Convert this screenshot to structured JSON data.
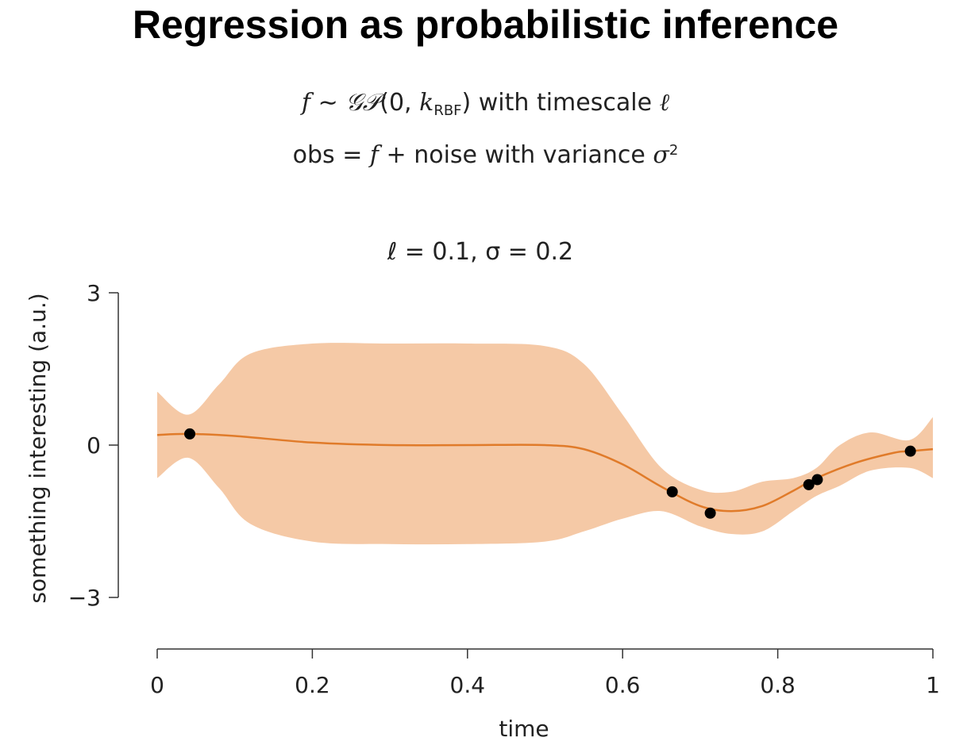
{
  "slide": {
    "title": "Regression as probabilistic inference",
    "line1": {
      "f": "f",
      "sim": " ∼ ",
      "gp": "𝒢𝒫",
      "open": "(0, ",
      "k": "k",
      "k_sub": "RBF",
      "close": ") with timescale ",
      "ell": "ℓ"
    },
    "line2": {
      "pre": "obs = ",
      "f": "f",
      "mid": " + noise with variance ",
      "sigma": "σ",
      "sup": "2"
    }
  },
  "chart_data": {
    "type": "line",
    "title": "ℓ = 0.1, σ = 0.2",
    "xlabel": "time",
    "ylabel": "something interesting (a.u.)",
    "xlim": [
      0,
      1
    ],
    "ylim": [
      -3,
      3
    ],
    "xticks": [
      0,
      0.2,
      0.4,
      0.6,
      0.8,
      1
    ],
    "xtick_labels": [
      "0",
      "0.2",
      "0.4",
      "0.6",
      "0.8",
      "1"
    ],
    "yticks": [
      3,
      0,
      -3
    ],
    "ytick_labels": [
      "3",
      "0",
      "−3"
    ],
    "grid": false,
    "colors": {
      "mean": "#e07b2a",
      "band": "#f5c9a6",
      "points": "#000000"
    },
    "mean": {
      "x": [
        0,
        0.04,
        0.1,
        0.2,
        0.3,
        0.4,
        0.5,
        0.55,
        0.6,
        0.65,
        0.7,
        0.74,
        0.78,
        0.82,
        0.85,
        0.9,
        0.95,
        0.97,
        1.0
      ],
      "y": [
        0.2,
        0.22,
        0.18,
        0.05,
        0.0,
        0.0,
        0.0,
        -0.08,
        -0.38,
        -0.82,
        -1.2,
        -1.3,
        -1.2,
        -0.9,
        -0.65,
        -0.35,
        -0.15,
        -0.12,
        -0.08
      ]
    },
    "band": {
      "x": [
        0,
        0.04,
        0.08,
        0.12,
        0.2,
        0.3,
        0.4,
        0.5,
        0.55,
        0.6,
        0.65,
        0.7,
        0.74,
        0.78,
        0.82,
        0.85,
        0.88,
        0.92,
        0.97,
        1.0
      ],
      "upper": [
        1.05,
        0.6,
        1.2,
        1.8,
        2.0,
        2.0,
        2.0,
        1.95,
        1.6,
        0.6,
        -0.45,
        -0.88,
        -0.92,
        -0.72,
        -0.65,
        -0.45,
        0.0,
        0.25,
        0.1,
        0.55
      ],
      "lower": [
        -0.65,
        -0.25,
        -0.85,
        -1.55,
        -1.9,
        -1.95,
        -1.95,
        -1.9,
        -1.7,
        -1.45,
        -1.3,
        -1.6,
        -1.75,
        -1.7,
        -1.3,
        -1.0,
        -0.8,
        -0.5,
        -0.45,
        -0.65
      ]
    },
    "observations": {
      "x": [
        0.042,
        0.664,
        0.713,
        0.84,
        0.851,
        0.971
      ],
      "y": [
        0.22,
        -0.92,
        -1.34,
        -0.78,
        -0.68,
        -0.12
      ]
    }
  }
}
